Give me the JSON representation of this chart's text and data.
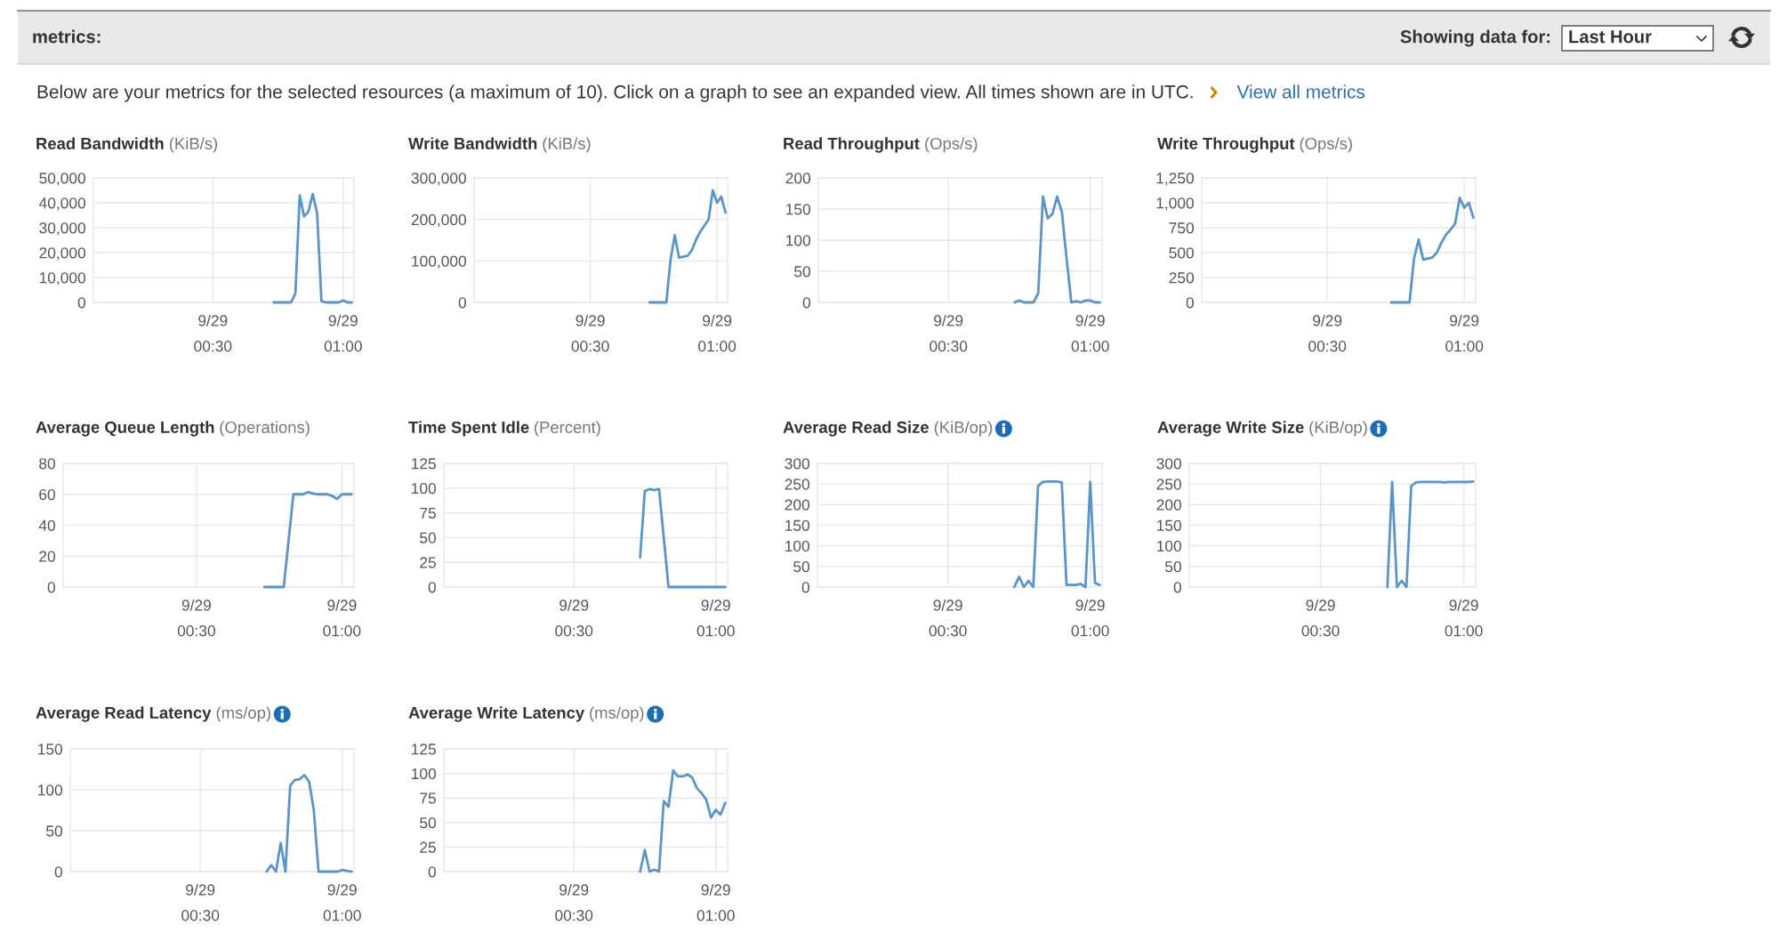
{
  "chart_data": [
    {
      "type": "other",
      "title": "metrics:",
      "annotations": [
        "Showing data for:",
        "Last Hour",
        "Below are your metrics for the selected resources (a maximum of 10). Click on a graph to see an expanded view. All times shown are in UTC.",
        "View all metrics"
      ]
    },
    {
      "type": "line",
      "title": "Read Bandwidth",
      "subtitle": "(KiB/s)",
      "color": "#5a94c9",
      "grid": true,
      "ylim": [
        0,
        50000
      ],
      "yticks": [
        0,
        {
          "value": 10000,
          "label": "10,000"
        },
        {
          "value": 20000,
          "label": "20,000"
        },
        {
          "value": 30000,
          "label": "30,000"
        },
        {
          "value": 40000,
          "label": "40,000"
        },
        {
          "value": 50000,
          "label": "50,000"
        }
      ],
      "categories": [
        null,
        null,
        null,
        null,
        null,
        null,
        null,
        null,
        null,
        null,
        null,
        null,
        null,
        null,
        null,
        null,
        null,
        null,
        null,
        null,
        null,
        null,
        null,
        null,
        null,
        null,
        null,
        "9/29\n00:30",
        null,
        null,
        null,
        null,
        null,
        null,
        null,
        null,
        null,
        null,
        null,
        null,
        null,
        null,
        null,
        null,
        null,
        null,
        null,
        null,
        null,
        null,
        null,
        null,
        null,
        null,
        null,
        null,
        null,
        "9/29\n01:00",
        null,
        null
      ],
      "values": [
        null,
        null,
        null,
        null,
        null,
        null,
        null,
        null,
        null,
        null,
        null,
        null,
        null,
        null,
        null,
        null,
        null,
        null,
        null,
        null,
        null,
        null,
        null,
        null,
        null,
        null,
        null,
        null,
        null,
        null,
        null,
        null,
        null,
        null,
        null,
        null,
        null,
        null,
        null,
        null,
        null,
        0,
        0,
        0,
        0,
        0,
        3500,
        43000,
        34500,
        36500,
        43500,
        36000,
        500,
        0,
        0,
        0,
        0,
        800,
        0,
        0
      ]
    },
    {
      "type": "line",
      "title": "Write Bandwidth",
      "subtitle": "(KiB/s)",
      "color": "#5a94c9",
      "grid": true,
      "ylim": [
        0,
        300000
      ],
      "yticks": [
        0,
        {
          "value": 100000,
          "label": "100,000"
        },
        {
          "value": 200000,
          "label": "200,000"
        },
        {
          "value": 300000,
          "label": "300,000"
        }
      ],
      "categories": [
        null,
        null,
        null,
        null,
        null,
        null,
        null,
        null,
        null,
        null,
        null,
        null,
        null,
        null,
        null,
        null,
        null,
        null,
        null,
        null,
        null,
        null,
        null,
        null,
        null,
        null,
        null,
        "9/29\n00:30",
        null,
        null,
        null,
        null,
        null,
        null,
        null,
        null,
        null,
        null,
        null,
        null,
        null,
        null,
        null,
        null,
        null,
        null,
        null,
        null,
        null,
        null,
        null,
        null,
        null,
        null,
        null,
        null,
        null,
        "9/29\n01:00",
        null,
        null
      ],
      "values": [
        null,
        null,
        null,
        null,
        null,
        null,
        null,
        null,
        null,
        null,
        null,
        null,
        null,
        null,
        null,
        null,
        null,
        null,
        null,
        null,
        null,
        null,
        null,
        null,
        null,
        null,
        null,
        null,
        null,
        null,
        null,
        null,
        null,
        null,
        null,
        null,
        null,
        null,
        null,
        null,
        null,
        0,
        0,
        0,
        0,
        0,
        103000,
        162000,
        108000,
        110000,
        112000,
        125000,
        150000,
        170000,
        185000,
        200000,
        270000,
        240000,
        255000,
        216000
      ]
    },
    {
      "type": "line",
      "title": "Read Throughput",
      "subtitle": "(Ops/s)",
      "color": "#5a94c9",
      "grid": true,
      "ylim": [
        0,
        200
      ],
      "yticks": [
        0,
        50,
        100,
        150,
        200
      ],
      "categories": [
        null,
        null,
        null,
        null,
        null,
        null,
        null,
        null,
        null,
        null,
        null,
        null,
        null,
        null,
        null,
        null,
        null,
        null,
        null,
        null,
        null,
        null,
        null,
        null,
        null,
        null,
        null,
        "9/29\n00:30",
        null,
        null,
        null,
        null,
        null,
        null,
        null,
        null,
        null,
        null,
        null,
        null,
        null,
        null,
        null,
        null,
        null,
        null,
        null,
        null,
        null,
        null,
        null,
        null,
        null,
        null,
        null,
        null,
        null,
        "9/29\n01:00",
        null,
        null
      ],
      "values": [
        null,
        null,
        null,
        null,
        null,
        null,
        null,
        null,
        null,
        null,
        null,
        null,
        null,
        null,
        null,
        null,
        null,
        null,
        null,
        null,
        null,
        null,
        null,
        null,
        null,
        null,
        null,
        null,
        null,
        null,
        null,
        null,
        null,
        null,
        null,
        null,
        null,
        null,
        null,
        null,
        null,
        0,
        3,
        0,
        0,
        0,
        15,
        170,
        135,
        142,
        170,
        145,
        70,
        0,
        2,
        0,
        3,
        3,
        0,
        0
      ]
    },
    {
      "type": "line",
      "title": "Write Throughput",
      "subtitle": "(Ops/s)",
      "color": "#5a94c9",
      "grid": true,
      "ylim": [
        0,
        1250
      ],
      "yticks": [
        0,
        250,
        500,
        750,
        {
          "value": 1000,
          "label": "1,000"
        },
        {
          "value": 1250,
          "label": "1,250"
        }
      ],
      "categories": [
        null,
        null,
        null,
        null,
        null,
        null,
        null,
        null,
        null,
        null,
        null,
        null,
        null,
        null,
        null,
        null,
        null,
        null,
        null,
        null,
        null,
        null,
        null,
        null,
        null,
        null,
        null,
        "9/29\n00:30",
        null,
        null,
        null,
        null,
        null,
        null,
        null,
        null,
        null,
        null,
        null,
        null,
        null,
        null,
        null,
        null,
        null,
        null,
        null,
        null,
        null,
        null,
        null,
        null,
        null,
        null,
        null,
        null,
        null,
        "9/29\n01:00",
        null,
        null
      ],
      "values": [
        null,
        null,
        null,
        null,
        null,
        null,
        null,
        null,
        null,
        null,
        null,
        null,
        null,
        null,
        null,
        null,
        null,
        null,
        null,
        null,
        null,
        null,
        null,
        null,
        null,
        null,
        null,
        null,
        null,
        null,
        null,
        null,
        null,
        null,
        null,
        null,
        null,
        null,
        null,
        null,
        null,
        0,
        0,
        0,
        0,
        0,
        440,
        630,
        430,
        440,
        450,
        500,
        600,
        680,
        730,
        790,
        1050,
        950,
        1000,
        850
      ]
    },
    {
      "type": "line",
      "title": "Average Queue Length",
      "subtitle": "(Operations)",
      "color": "#5a94c9",
      "grid": true,
      "ylim": [
        0,
        80
      ],
      "yticks": [
        0,
        20,
        40,
        60,
        80
      ],
      "categories": [
        null,
        null,
        null,
        null,
        null,
        null,
        null,
        null,
        null,
        null,
        null,
        null,
        null,
        null,
        null,
        null,
        null,
        null,
        null,
        null,
        null,
        null,
        null,
        null,
        null,
        null,
        null,
        "9/29\n00:30",
        null,
        null,
        null,
        null,
        null,
        null,
        null,
        null,
        null,
        null,
        null,
        null,
        null,
        null,
        null,
        null,
        null,
        null,
        null,
        null,
        null,
        null,
        null,
        null,
        null,
        null,
        null,
        null,
        null,
        "9/29\n01:00",
        null,
        null
      ],
      "values": [
        null,
        null,
        null,
        null,
        null,
        null,
        null,
        null,
        null,
        null,
        null,
        null,
        null,
        null,
        null,
        null,
        null,
        null,
        null,
        null,
        null,
        null,
        null,
        null,
        null,
        null,
        null,
        null,
        null,
        null,
        null,
        null,
        null,
        null,
        null,
        null,
        null,
        null,
        null,
        null,
        null,
        0,
        0,
        0,
        0,
        0,
        30,
        60,
        60,
        60,
        61.5,
        60.5,
        60,
        60,
        60,
        59,
        57,
        60,
        60,
        60
      ]
    },
    {
      "type": "line",
      "title": "Time Spent Idle",
      "subtitle": "(Percent)",
      "color": "#5a94c9",
      "grid": true,
      "ylim": [
        0,
        125
      ],
      "yticks": [
        0,
        25,
        50,
        75,
        100,
        125
      ],
      "categories": [
        null,
        null,
        null,
        null,
        null,
        null,
        null,
        null,
        null,
        null,
        null,
        null,
        null,
        null,
        null,
        null,
        null,
        null,
        null,
        null,
        null,
        null,
        null,
        null,
        null,
        null,
        null,
        "9/29\n00:30",
        null,
        null,
        null,
        null,
        null,
        null,
        null,
        null,
        null,
        null,
        null,
        null,
        null,
        null,
        null,
        null,
        null,
        null,
        null,
        null,
        null,
        null,
        null,
        null,
        null,
        null,
        null,
        null,
        null,
        "9/29\n01:00",
        null,
        null
      ],
      "values": [
        null,
        null,
        null,
        null,
        null,
        null,
        null,
        null,
        null,
        null,
        null,
        null,
        null,
        null,
        null,
        null,
        null,
        null,
        null,
        null,
        null,
        null,
        null,
        null,
        null,
        null,
        null,
        null,
        null,
        null,
        null,
        null,
        null,
        null,
        null,
        null,
        null,
        null,
        null,
        null,
        null,
        30,
        97,
        99,
        98,
        99,
        50,
        0,
        0,
        0,
        0,
        0,
        0,
        0,
        0,
        0,
        0,
        0,
        0,
        0
      ]
    },
    {
      "type": "line",
      "title": "Average Read Size",
      "subtitle": "(KiB/op)",
      "color": "#5a94c9",
      "grid": true,
      "ylim": [
        0,
        300
      ],
      "yticks": [
        0,
        50,
        100,
        150,
        200,
        250,
        300
      ],
      "categories": [
        null,
        null,
        null,
        null,
        null,
        null,
        null,
        null,
        null,
        null,
        null,
        null,
        null,
        null,
        null,
        null,
        null,
        null,
        null,
        null,
        null,
        null,
        null,
        null,
        null,
        null,
        null,
        "9/29\n00:30",
        null,
        null,
        null,
        null,
        null,
        null,
        null,
        null,
        null,
        null,
        null,
        null,
        null,
        null,
        null,
        null,
        null,
        null,
        null,
        null,
        null,
        null,
        null,
        null,
        null,
        null,
        null,
        null,
        null,
        "9/29\n01:00",
        null,
        null
      ],
      "values": [
        null,
        null,
        null,
        null,
        null,
        null,
        null,
        null,
        null,
        null,
        null,
        null,
        null,
        null,
        null,
        null,
        null,
        null,
        null,
        null,
        null,
        null,
        null,
        null,
        null,
        null,
        null,
        null,
        null,
        null,
        null,
        null,
        null,
        null,
        null,
        null,
        null,
        null,
        null,
        null,
        null,
        0,
        25,
        0,
        15,
        0,
        245,
        255,
        256,
        256,
        256,
        254,
        5,
        5,
        5,
        8,
        0,
        255,
        10,
        5
      ]
    },
    {
      "type": "line",
      "title": "Average Write Size",
      "subtitle": "(KiB/op)",
      "color": "#5a94c9",
      "grid": true,
      "ylim": [
        0,
        300
      ],
      "yticks": [
        0,
        50,
        100,
        150,
        200,
        250,
        300
      ],
      "categories": [
        null,
        null,
        null,
        null,
        null,
        null,
        null,
        null,
        null,
        null,
        null,
        null,
        null,
        null,
        null,
        null,
        null,
        null,
        null,
        null,
        null,
        null,
        null,
        null,
        null,
        null,
        null,
        "9/29\n00:30",
        null,
        null,
        null,
        null,
        null,
        null,
        null,
        null,
        null,
        null,
        null,
        null,
        null,
        null,
        null,
        null,
        null,
        null,
        null,
        null,
        null,
        null,
        null,
        null,
        null,
        null,
        null,
        null,
        null,
        "9/29\n01:00",
        null,
        null
      ],
      "values": [
        null,
        null,
        null,
        null,
        null,
        null,
        null,
        null,
        null,
        null,
        null,
        null,
        null,
        null,
        null,
        null,
        null,
        null,
        null,
        null,
        null,
        null,
        null,
        null,
        null,
        null,
        null,
        null,
        null,
        null,
        null,
        null,
        null,
        null,
        null,
        null,
        null,
        null,
        null,
        null,
        null,
        0,
        255,
        0,
        15,
        0,
        245,
        254,
        255,
        255,
        255,
        255,
        255,
        254,
        255,
        255,
        255,
        255,
        255,
        256
      ]
    },
    {
      "type": "line",
      "title": "Average Read Latency",
      "subtitle": "(ms/op)",
      "color": "#5a94c9",
      "grid": true,
      "ylim": [
        0,
        150
      ],
      "yticks": [
        0,
        50,
        100,
        150
      ],
      "categories": [
        null,
        null,
        null,
        null,
        null,
        null,
        null,
        null,
        null,
        null,
        null,
        null,
        null,
        null,
        null,
        null,
        null,
        null,
        null,
        null,
        null,
        null,
        null,
        null,
        null,
        null,
        null,
        "9/29\n00:30",
        null,
        null,
        null,
        null,
        null,
        null,
        null,
        null,
        null,
        null,
        null,
        null,
        null,
        null,
        null,
        null,
        null,
        null,
        null,
        null,
        null,
        null,
        null,
        null,
        null,
        null,
        null,
        null,
        null,
        "9/29\n01:00",
        null,
        null
      ],
      "values": [
        null,
        null,
        null,
        null,
        null,
        null,
        null,
        null,
        null,
        null,
        null,
        null,
        null,
        null,
        null,
        null,
        null,
        null,
        null,
        null,
        null,
        null,
        null,
        null,
        null,
        null,
        null,
        null,
        null,
        null,
        null,
        null,
        null,
        null,
        null,
        null,
        null,
        null,
        null,
        null,
        null,
        0,
        8,
        0,
        35,
        0,
        105,
        112,
        113,
        118,
        110,
        75,
        0,
        0,
        0,
        0,
        0,
        2,
        1,
        0
      ]
    },
    {
      "type": "line",
      "title": "Average Write Latency",
      "subtitle": "(ms/op)",
      "color": "#5a94c9",
      "grid": true,
      "ylim": [
        0,
        125
      ],
      "yticks": [
        0,
        25,
        50,
        75,
        100,
        125
      ],
      "categories": [
        null,
        null,
        null,
        null,
        null,
        null,
        null,
        null,
        null,
        null,
        null,
        null,
        null,
        null,
        null,
        null,
        null,
        null,
        null,
        null,
        null,
        null,
        null,
        null,
        null,
        null,
        null,
        "9/29\n00:30",
        null,
        null,
        null,
        null,
        null,
        null,
        null,
        null,
        null,
        null,
        null,
        null,
        null,
        null,
        null,
        null,
        null,
        null,
        null,
        null,
        null,
        null,
        null,
        null,
        null,
        null,
        null,
        null,
        null,
        "9/29\n01:00",
        null,
        null
      ],
      "values": [
        null,
        null,
        null,
        null,
        null,
        null,
        null,
        null,
        null,
        null,
        null,
        null,
        null,
        null,
        null,
        null,
        null,
        null,
        null,
        null,
        null,
        null,
        null,
        null,
        null,
        null,
        null,
        null,
        null,
        null,
        null,
        null,
        null,
        null,
        null,
        null,
        null,
        null,
        null,
        null,
        null,
        0,
        22,
        0,
        2,
        0,
        72,
        66,
        103,
        97,
        97,
        99,
        96,
        85,
        80,
        73,
        55,
        63,
        58,
        70
      ]
    }
  ]
}
